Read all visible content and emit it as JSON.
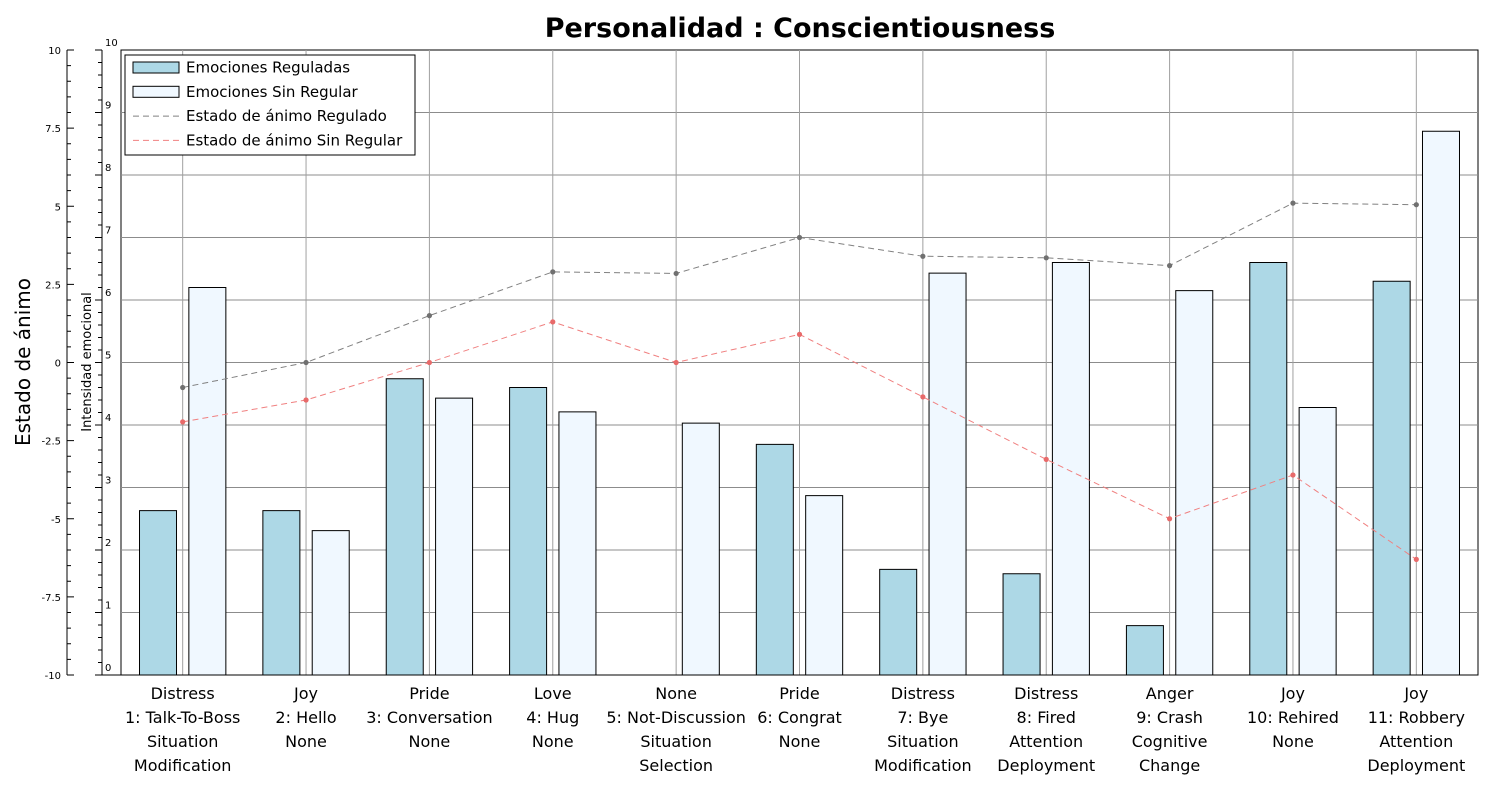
{
  "chart_data": {
    "type": "bar",
    "title": "Personalidad : Conscientiousness",
    "y_left": {
      "label": "Estado de ánimo",
      "ticks": [
        "10",
        "7.5",
        "5",
        "2.5",
        "0",
        "-2.5",
        "-5",
        "-7.5",
        "-10"
      ],
      "range": [
        -10,
        10
      ]
    },
    "y_right": {
      "label": "Intensidad emocional",
      "ticks": [
        "10",
        "9",
        "8",
        "7",
        "6",
        "5",
        "4",
        "3",
        "2",
        "1",
        "0"
      ],
      "range": [
        0,
        10
      ]
    },
    "categories": [
      [
        "Distress",
        "1: Talk-To-Boss",
        "Situation",
        "Modification"
      ],
      [
        "Joy",
        "2: Hello",
        "None"
      ],
      [
        "Pride",
        "3: Conversation",
        "None"
      ],
      [
        "Love",
        "4: Hug",
        "None"
      ],
      [
        "None",
        "5: Not-Discussion",
        "Situation",
        "Selection"
      ],
      [
        "Pride",
        "6: Congrat",
        "None"
      ],
      [
        "Distress",
        "7: Bye",
        "Situation",
        "Modification"
      ],
      [
        "Distress",
        "8: Fired",
        "Attention",
        "Deployment"
      ],
      [
        "Anger",
        "9: Crash",
        "Cognitive",
        "Change"
      ],
      [
        "Joy",
        "10: Rehired",
        "None"
      ],
      [
        "Joy",
        "11: Robbery",
        "Attention",
        "Deployment"
      ]
    ],
    "bar_series": [
      {
        "name": "Emociones Reguladas",
        "color": "#add8e6",
        "axis": "right",
        "values": [
          2.63,
          2.63,
          4.74,
          4.6,
          null,
          3.69,
          1.69,
          1.62,
          0.79,
          6.6,
          6.3
        ]
      },
      {
        "name": "Emociones Sin Regular",
        "color": "#f0f8ff",
        "axis": "right",
        "values": [
          6.2,
          2.31,
          4.43,
          4.21,
          4.03,
          2.87,
          6.43,
          6.6,
          6.15,
          4.28,
          8.7
        ]
      }
    ],
    "line_series": [
      {
        "name": "Estado de ánimo Regulado",
        "color": "#808080",
        "dash": "dashed",
        "axis": "left",
        "values": [
          -0.8,
          0.0,
          1.5,
          2.9,
          2.85,
          4.0,
          3.4,
          3.35,
          3.1,
          5.1,
          5.05
        ]
      },
      {
        "name": "Estado de ánimo Sin Regular",
        "color": "#f08080",
        "dash": "dashed",
        "axis": "left",
        "values": [
          -1.9,
          -1.2,
          0.0,
          1.3,
          0.0,
          0.9,
          -1.1,
          -3.1,
          -5.0,
          -3.6,
          -6.3
        ]
      }
    ],
    "legend": {
      "position": "top-left"
    },
    "grid": true
  }
}
